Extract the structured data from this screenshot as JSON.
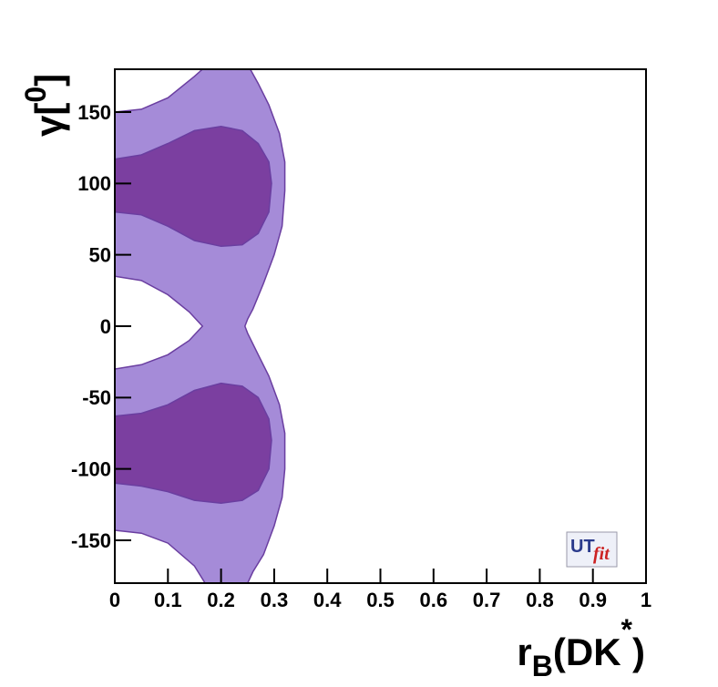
{
  "chart_data": {
    "type": "contour",
    "xlim": [
      0,
      1
    ],
    "ylim": [
      -180,
      180
    ],
    "xticks": [
      0,
      0.1,
      0.2,
      0.3,
      0.4,
      0.5,
      0.6,
      0.7,
      0.8,
      0.9,
      1
    ],
    "yticks": [
      -150,
      -100,
      -50,
      0,
      50,
      100,
      150
    ],
    "xlabel": {
      "main": "r",
      "sub": "B",
      "rest": "(DK",
      "sup": "*",
      "end": ")"
    },
    "ylabel": {
      "main": "γ[",
      "sup": "0",
      "end": "]"
    },
    "logo": {
      "ut": "UT",
      "fit": "fit"
    },
    "regions": [
      {
        "color": "#a58bd8",
        "x": [
          0,
          0.05,
          0.1,
          0.15,
          0.165,
          0.255,
          0.27,
          0.29,
          0.31,
          0.32,
          0.32,
          0.315,
          0.3,
          0.28,
          0.26,
          0.25,
          0.245,
          0.25,
          0.27,
          0.29,
          0.31,
          0.32,
          0.32,
          0.315,
          0.3,
          0.28,
          0.26,
          0.25,
          0.17,
          0.15,
          0.1,
          0.05,
          0,
          0,
          0.05,
          0.1,
          0.14,
          0.165,
          0.14,
          0.1,
          0.05,
          0
        ],
        "y": [
          150,
          152,
          160,
          175,
          180,
          180,
          170,
          155,
          135,
          115,
          95,
          70,
          50,
          30,
          12,
          5,
          0,
          -5,
          -20,
          -35,
          -55,
          -75,
          -100,
          -120,
          -140,
          -160,
          -172,
          -180,
          -180,
          -168,
          -152,
          -145,
          -143,
          -30,
          -27,
          -20,
          -10,
          0,
          10,
          22,
          32,
          35
        ]
      },
      {
        "color": "#7b3fa0",
        "x": [
          0,
          0.05,
          0.1,
          0.15,
          0.2,
          0.24,
          0.27,
          0.29,
          0.295,
          0.29,
          0.27,
          0.24,
          0.2,
          0.15,
          0.1,
          0.05,
          0
        ],
        "y": [
          117,
          120,
          128,
          137,
          140,
          137,
          128,
          115,
          100,
          80,
          65,
          57,
          56,
          60,
          70,
          78,
          80
        ]
      },
      {
        "color": "#7b3fa0",
        "x": [
          0,
          0.05,
          0.1,
          0.15,
          0.2,
          0.24,
          0.27,
          0.29,
          0.295,
          0.29,
          0.27,
          0.24,
          0.2,
          0.15,
          0.1,
          0.05,
          0
        ],
        "y": [
          -63,
          -61,
          -55,
          -45,
          -40,
          -42,
          -50,
          -65,
          -80,
          -100,
          -115,
          -122,
          -124,
          -122,
          -116,
          -112,
          -110
        ]
      }
    ]
  }
}
